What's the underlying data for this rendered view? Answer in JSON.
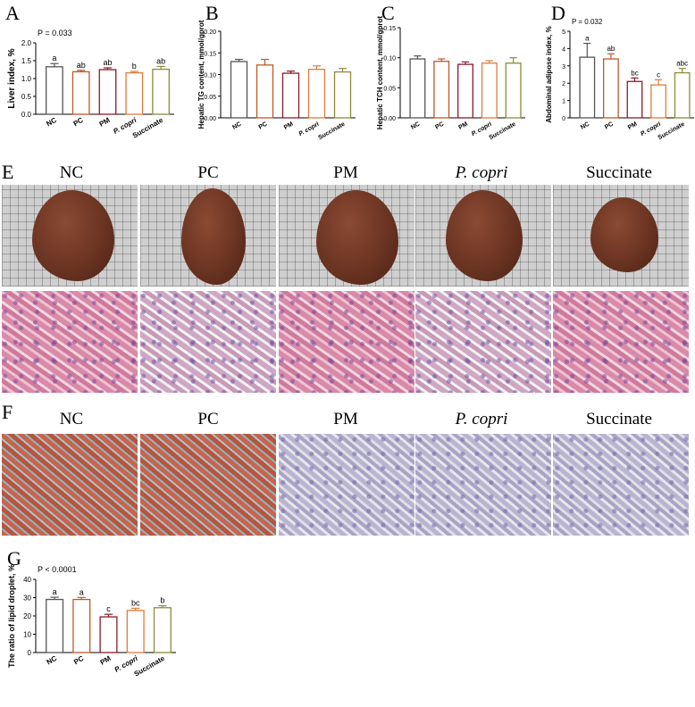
{
  "panels": {
    "A": "A",
    "B": "B",
    "C": "C",
    "D": "D",
    "E": "E",
    "F": "F",
    "G": "G"
  },
  "group_labels": [
    "NC",
    "PC",
    "PM",
    "P. copri",
    "Succinate"
  ],
  "colors": {
    "NC": "#555555",
    "PC": "#c0582a",
    "PM": "#8b1a2b",
    "P. copri": "#e07b39",
    "Succinate": "#8c8c3a"
  },
  "chart_data": [
    {
      "id": "A",
      "type": "bar",
      "categories": [
        "NC",
        "PC",
        "PM",
        "P. copri",
        "Succinate"
      ],
      "values": [
        1.33,
        1.19,
        1.25,
        1.16,
        1.26
      ],
      "errors": [
        0.09,
        0.04,
        0.05,
        0.04,
        0.08
      ],
      "sig_letters": [
        "a",
        "ab",
        "ab",
        "b",
        "ab"
      ],
      "annotation": "P = 0.033",
      "ylabel": "Liver index, %",
      "ylim": [
        0,
        2.0
      ],
      "yticks": [
        "0.0",
        "0.5",
        "1.0",
        "1.5",
        "2.0"
      ]
    },
    {
      "id": "B",
      "type": "bar",
      "categories": [
        "NC",
        "PC",
        "PM",
        "P. copri",
        "Succinate"
      ],
      "values": [
        0.13,
        0.122,
        0.103,
        0.112,
        0.106
      ],
      "errors": [
        0.005,
        0.013,
        0.005,
        0.008,
        0.008
      ],
      "sig_letters": [],
      "annotation": "",
      "ylabel": "Hepatic TG content, mmol/gprot",
      "ylim": [
        0,
        0.2
      ],
      "yticks": [
        "0.00",
        "0.05",
        "0.10",
        "0.15",
        "0.20"
      ]
    },
    {
      "id": "C",
      "type": "bar",
      "categories": [
        "NC",
        "PC",
        "PM",
        "P. copri",
        "Succinate"
      ],
      "values": [
        0.098,
        0.094,
        0.089,
        0.091,
        0.091
      ],
      "errors": [
        0.005,
        0.004,
        0.004,
        0.004,
        0.009
      ],
      "sig_letters": [],
      "annotation": "",
      "ylabel": "Hepatic TCH content, mmol/gprot",
      "ylim": [
        0,
        0.15
      ],
      "yticks": [
        "0.00",
        "0.05",
        "0.10",
        "0.15"
      ]
    },
    {
      "id": "D",
      "type": "bar",
      "categories": [
        "NC",
        "PC",
        "PM",
        "P. copri",
        "Succinate"
      ],
      "values": [
        3.5,
        3.4,
        2.1,
        1.9,
        2.6
      ],
      "errors": [
        0.8,
        0.3,
        0.2,
        0.3,
        0.25
      ],
      "sig_letters": [
        "a",
        "ab",
        "bc",
        "c",
        "abc"
      ],
      "annotation": "P = 0.032",
      "ylabel": "Abdominal adipose index, %",
      "ylim": [
        0,
        5
      ],
      "yticks": [
        "0",
        "1",
        "2",
        "3",
        "4",
        "5"
      ]
    },
    {
      "id": "G",
      "type": "bar",
      "categories": [
        "NC",
        "PC",
        "PM",
        "P. copri",
        "Succinate"
      ],
      "values": [
        29.0,
        29.0,
        19.5,
        23.0,
        24.5
      ],
      "errors": [
        1.2,
        1.1,
        1.4,
        1.2,
        1.1
      ],
      "sig_letters": [
        "a",
        "a",
        "c",
        "bc",
        "b"
      ],
      "annotation": "P < 0.0001",
      "ylabel": "The ratio of lipid droplet, %",
      "ylim": [
        0,
        40
      ],
      "yticks": [
        "0",
        "10",
        "20",
        "30",
        "40"
      ]
    }
  ]
}
